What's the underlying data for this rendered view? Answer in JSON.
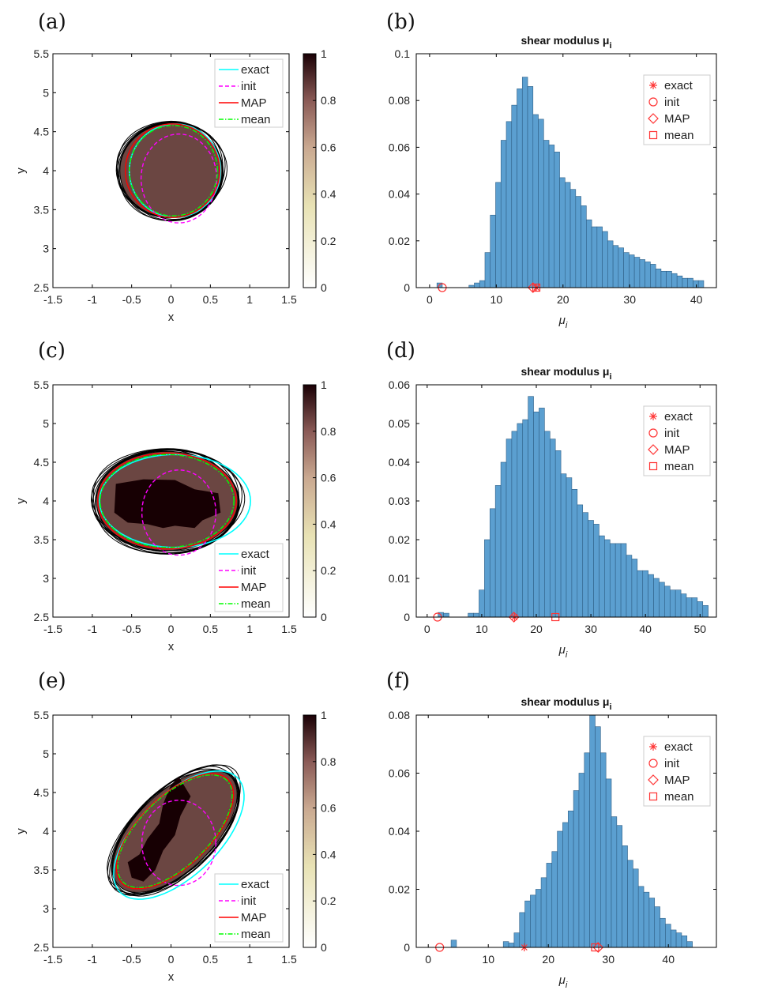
{
  "panel_labels": [
    "(a)",
    "(b)",
    "(c)",
    "(d)",
    "(e)",
    "(f)"
  ],
  "colors": {
    "exact": "#00ffff",
    "init": "#ff00ff",
    "map": "#ff0000",
    "mean": "#00ff00",
    "sample": "#000000",
    "bar": "#5b9fd0",
    "marker": "#ff3333",
    "field_mid": "#6b4642",
    "field_high": "#170003"
  },
  "chart_data": [
    {
      "id": "a",
      "type": "heatmap",
      "xlabel": "x",
      "ylabel": "y",
      "xlim": [
        -1.5,
        1.5
      ],
      "ylim": [
        2.5,
        5.5
      ],
      "xticks": [
        "-1.5",
        "-1",
        "-0.5",
        "0",
        "0.5",
        "1",
        "1.5"
      ],
      "yticks": [
        "2.5",
        "3",
        "3.5",
        "4",
        "4.5",
        "5",
        "5.5"
      ],
      "colorbar": {
        "ticks": [
          "0",
          "0.2",
          "0.4",
          "0.6",
          "0.8",
          "1"
        ],
        "range": [
          0,
          1
        ]
      },
      "legend": {
        "placement": "top-right",
        "entries": [
          "exact",
          "init",
          "MAP",
          "mean"
        ]
      },
      "inclusion": {
        "cx": 0.0,
        "cy": 4.0,
        "rx": 0.65,
        "ry": 0.6,
        "value": 0.8
      },
      "core": [],
      "curves": {
        "exact": {
          "cx": 0.05,
          "cy": 4.0,
          "rx": 0.58,
          "ry": 0.6
        },
        "init": {
          "cx": 0.1,
          "cy": 3.9,
          "rx": 0.48,
          "ry": 0.57
        },
        "map": {
          "cx": 0.02,
          "cy": 4.0,
          "rx": 0.6,
          "ry": 0.6
        },
        "mean": {
          "cx": 0.03,
          "cy": 4.0,
          "rx": 0.56,
          "ry": 0.58
        }
      }
    },
    {
      "id": "b",
      "type": "bar",
      "title": "shear modulus μ",
      "title_sub": "i",
      "xlabel": "μ",
      "xlabel_sub": "i",
      "xlim": [
        -2,
        43
      ],
      "ylim": [
        0,
        0.1
      ],
      "xticks": [
        0,
        10,
        20,
        30,
        40
      ],
      "yticks": [
        "0",
        "0.02",
        "0.04",
        "0.06",
        "0.08",
        "0.1"
      ],
      "ytick_values": [
        0,
        0.02,
        0.04,
        0.06,
        0.08,
        0.1
      ],
      "bin_start": 5.9,
      "bin_width": 0.8,
      "values": [
        0.001,
        0.002,
        0.003,
        0.015,
        0.031,
        0.045,
        0.063,
        0.071,
        0.078,
        0.085,
        0.09,
        0.086,
        0.074,
        0.072,
        0.063,
        0.061,
        0.058,
        0.047,
        0.045,
        0.042,
        0.039,
        0.035,
        0.029,
        0.026,
        0.026,
        0.024,
        0.02,
        0.018,
        0.017,
        0.015,
        0.014,
        0.013,
        0.012,
        0.011,
        0.01,
        0.008,
        0.007,
        0.007,
        0.006,
        0.005,
        0.004,
        0.004,
        0.003,
        0.003
      ],
      "extra_bins": [
        {
          "x0": 1.1,
          "x1": 1.9,
          "value": 0.002
        }
      ],
      "markers": {
        "exact": 16.0,
        "init": 1.9,
        "map": 15.5,
        "mean": 16.0
      },
      "legend": {
        "placement": "top-right",
        "entries": [
          "exact",
          "init",
          "MAP",
          "mean"
        ]
      }
    },
    {
      "id": "c",
      "type": "heatmap",
      "xlabel": "x",
      "ylabel": "y",
      "xlim": [
        -1.5,
        1.5
      ],
      "ylim": [
        2.5,
        5.5
      ],
      "xticks": [
        "-1.5",
        "-1",
        "-0.5",
        "0",
        "0.5",
        "1",
        "1.5"
      ],
      "yticks": [
        "2.5",
        "3",
        "3.5",
        "4",
        "4.5",
        "5",
        "5.5"
      ],
      "colorbar": {
        "ticks": [
          "0",
          "0.2",
          "0.4",
          "0.6",
          "0.8",
          "1"
        ],
        "range": [
          0,
          1
        ]
      },
      "legend": {
        "placement": "bottom-right",
        "entries": [
          "exact",
          "init",
          "MAP",
          "mean"
        ]
      },
      "inclusion": {
        "cx": -0.05,
        "cy": 4.0,
        "rx": 0.9,
        "ry": 0.64,
        "value": 0.8
      },
      "core": [
        [
          -0.7,
          4.22
        ],
        [
          -0.35,
          4.28
        ],
        [
          0.05,
          4.27
        ],
        [
          0.3,
          4.15
        ],
        [
          0.6,
          4.1
        ],
        [
          0.63,
          3.85
        ],
        [
          0.4,
          3.75
        ],
        [
          0.3,
          3.65
        ],
        [
          0.05,
          3.68
        ],
        [
          -0.1,
          3.65
        ],
        [
          -0.3,
          3.7
        ],
        [
          -0.55,
          3.72
        ],
        [
          -0.72,
          3.85
        ]
      ],
      "curves": {
        "exact": {
          "cx": 0.05,
          "cy": 4.0,
          "rx": 0.96,
          "ry": 0.6
        },
        "init": {
          "cx": 0.1,
          "cy": 3.85,
          "rx": 0.47,
          "ry": 0.55
        },
        "map": {
          "cx": -0.05,
          "cy": 4.0,
          "rx": 0.88,
          "ry": 0.62
        },
        "mean": {
          "cx": -0.05,
          "cy": 4.0,
          "rx": 0.85,
          "ry": 0.6
        }
      }
    },
    {
      "id": "d",
      "type": "bar",
      "title": "shear modulus μ",
      "title_sub": "i",
      "xlabel": "μ",
      "xlabel_sub": "i",
      "xlim": [
        -2,
        53
      ],
      "ylim": [
        0,
        0.06
      ],
      "xticks": [
        0,
        10,
        20,
        30,
        40,
        50
      ],
      "yticks": [
        "0",
        "0.01",
        "0.02",
        "0.03",
        "0.04",
        "0.05",
        "0.06"
      ],
      "ytick_values": [
        0,
        0.01,
        0.02,
        0.03,
        0.04,
        0.05,
        0.06
      ],
      "bin_start": 7.5,
      "bin_width": 1.0,
      "values": [
        0.001,
        0.001,
        0.007,
        0.02,
        0.028,
        0.034,
        0.04,
        0.046,
        0.048,
        0.05,
        0.051,
        0.057,
        0.053,
        0.054,
        0.048,
        0.046,
        0.043,
        0.037,
        0.036,
        0.033,
        0.029,
        0.027,
        0.025,
        0.024,
        0.021,
        0.02,
        0.019,
        0.019,
        0.019,
        0.016,
        0.015,
        0.012,
        0.012,
        0.011,
        0.01,
        0.009,
        0.008,
        0.007,
        0.007,
        0.006,
        0.005,
        0.005,
        0.004,
        0.003
      ],
      "extra_bins": [
        {
          "x0": 2.0,
          "x1": 3.0,
          "value": 0.0012
        },
        {
          "x0": 3.0,
          "x1": 4.0,
          "value": 0.001
        }
      ],
      "markers": {
        "exact": 16.0,
        "init": 1.9,
        "map": 15.9,
        "mean": 23.5
      },
      "legend": {
        "placement": "top-right",
        "entries": [
          "exact",
          "init",
          "MAP",
          "mean"
        ]
      }
    },
    {
      "id": "e",
      "type": "heatmap",
      "xlabel": "x",
      "ylabel": "y",
      "xlim": [
        -1.5,
        1.5
      ],
      "ylim": [
        2.5,
        5.5
      ],
      "xticks": [
        "-1.5",
        "-1",
        "-0.5",
        "0",
        "0.5",
        "1",
        "1.5"
      ],
      "yticks": [
        "2.5",
        "3",
        "3.5",
        "4",
        "4.5",
        "5",
        "5.5"
      ],
      "colorbar": {
        "ticks": [
          "0",
          "0.2",
          "0.4",
          "0.6",
          "0.8",
          "1"
        ],
        "range": [
          0,
          1
        ]
      },
      "legend": {
        "placement": "bottom-right",
        "entries": [
          "exact",
          "init",
          "MAP",
          "mean"
        ]
      },
      "inclusion": {
        "cx": 0.05,
        "cy": 4.0,
        "rx": 1.0,
        "ry": 0.5,
        "angle": 45,
        "value": 0.8
      },
      "core": [
        [
          0.1,
          4.7
        ],
        [
          0.25,
          4.45
        ],
        [
          0.12,
          4.2
        ],
        [
          0.05,
          3.95
        ],
        [
          -0.1,
          3.75
        ],
        [
          -0.2,
          3.5
        ],
        [
          -0.35,
          3.35
        ],
        [
          -0.5,
          3.4
        ],
        [
          -0.55,
          3.6
        ],
        [
          -0.4,
          3.7
        ],
        [
          -0.3,
          3.9
        ],
        [
          -0.15,
          4.1
        ],
        [
          -0.1,
          4.35
        ],
        [
          0.0,
          4.6
        ]
      ],
      "curves": {
        "exact": {
          "cx": 0.1,
          "cy": 3.95,
          "rx": 1.05,
          "ry": 0.52,
          "angle": 45
        },
        "init": {
          "cx": 0.1,
          "cy": 3.85,
          "rx": 0.47,
          "ry": 0.55,
          "angle": 0
        },
        "map": {
          "cx": 0.05,
          "cy": 4.0,
          "rx": 0.95,
          "ry": 0.45,
          "angle": 45
        },
        "mean": {
          "cx": 0.05,
          "cy": 4.0,
          "rx": 0.93,
          "ry": 0.44,
          "angle": 45
        }
      }
    },
    {
      "id": "f",
      "type": "bar",
      "title": "shear modulus μ",
      "title_sub": "i",
      "xlabel": "μ",
      "xlabel_sub": "i",
      "xlim": [
        -2,
        48
      ],
      "ylim": [
        0,
        0.08
      ],
      "xticks": [
        0,
        10,
        20,
        30,
        40
      ],
      "yticks": [
        "0",
        "0.02",
        "0.04",
        "0.06",
        "0.08"
      ],
      "ytick_values": [
        0,
        0.02,
        0.04,
        0.06,
        0.08
      ],
      "bin_start": 12.5,
      "bin_width": 0.9,
      "values": [
        0.002,
        0.0015,
        0.005,
        0.012,
        0.016,
        0.018,
        0.02,
        0.024,
        0.029,
        0.033,
        0.04,
        0.043,
        0.047,
        0.054,
        0.06,
        0.067,
        0.08,
        0.076,
        0.067,
        0.058,
        0.045,
        0.042,
        0.035,
        0.03,
        0.027,
        0.021,
        0.019,
        0.017,
        0.014,
        0.01,
        0.008,
        0.006,
        0.005,
        0.004,
        0.002
      ],
      "extra_bins": [
        {
          "x0": 3.8,
          "x1": 4.7,
          "value": 0.0025
        }
      ],
      "markers": {
        "exact": 16.0,
        "init": 1.9,
        "map": 28.3,
        "mean": 27.8
      },
      "legend": {
        "placement": "top-right",
        "entries": [
          "exact",
          "init",
          "MAP",
          "mean"
        ]
      }
    }
  ]
}
